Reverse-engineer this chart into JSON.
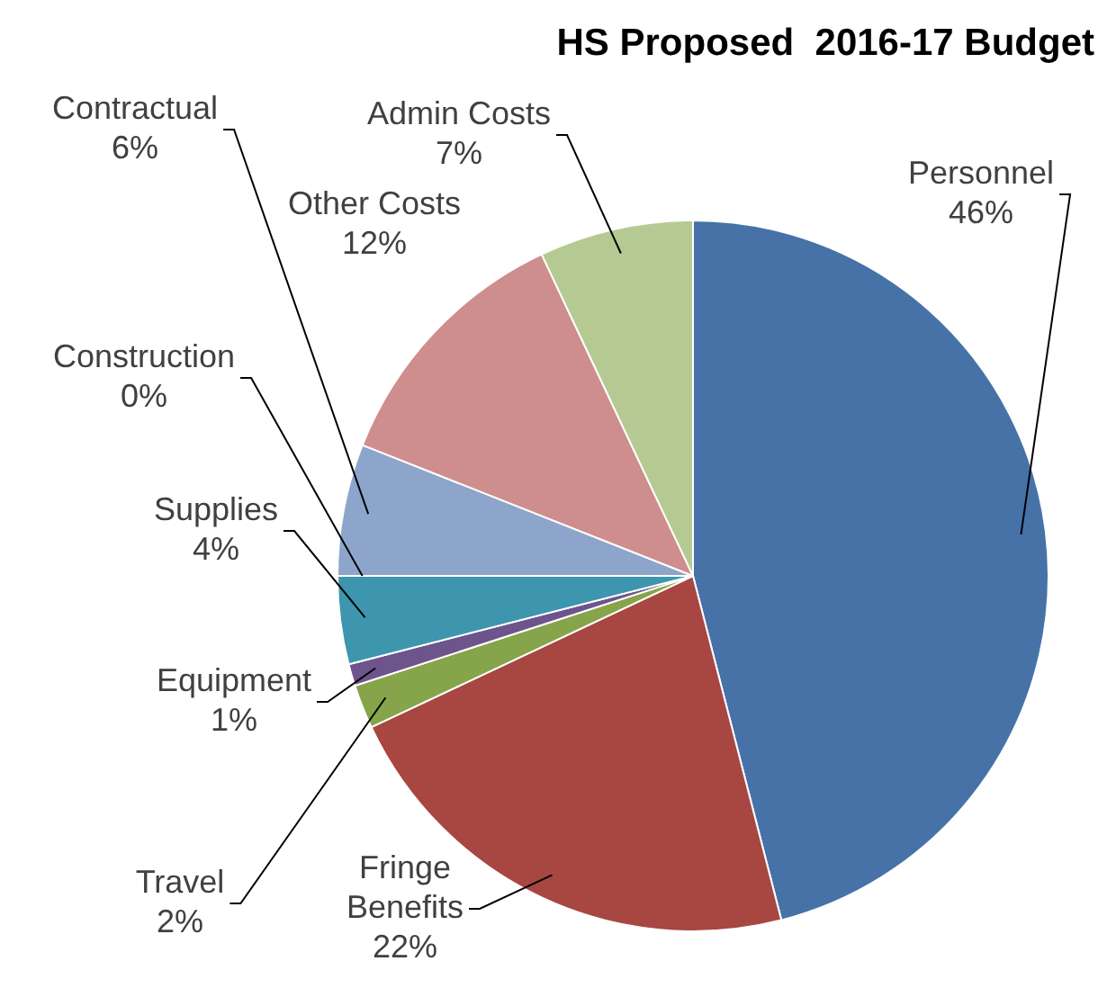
{
  "chart_data": {
    "type": "pie",
    "title": "HS Proposed  2016-17 Budget",
    "categories": [
      "Personnel",
      "Fringe Benefits",
      "Travel",
      "Equipment",
      "Supplies",
      "Construction",
      "Contractual",
      "Other Costs",
      "Admin Costs"
    ],
    "values": [
      46,
      22,
      2,
      1,
      4,
      0,
      6,
      12,
      7
    ],
    "value_labels": [
      "46%",
      "22%",
      "2%",
      "1%",
      "4%",
      "0%",
      "6%",
      "12%",
      "7%"
    ],
    "colors": [
      "#4672a8",
      "#a84642",
      "#86a44a",
      "#6e548d",
      "#3d96ae",
      "#da8137",
      "#8ea5cb",
      "#ce8e8d",
      "#b5ca92"
    ],
    "legend": false
  }
}
